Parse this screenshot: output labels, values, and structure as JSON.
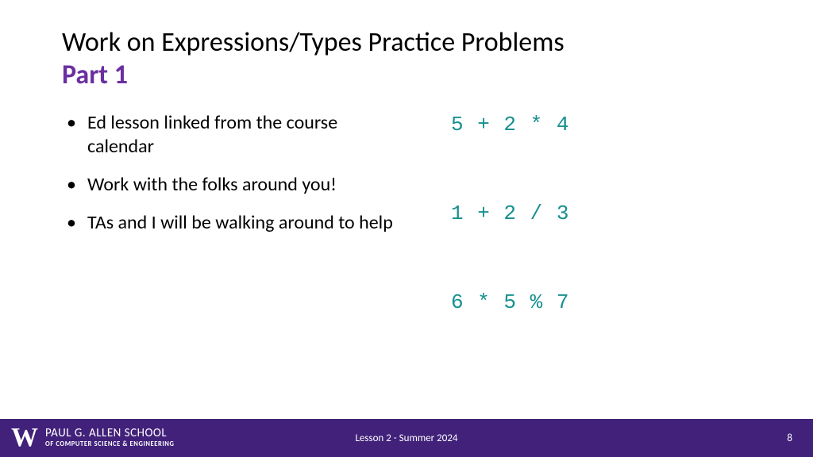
{
  "colors": {
    "accent_purple": "#6b2fa0",
    "footer_purple": "#41217a",
    "code_teal": "#178f8f",
    "text_black": "#000000",
    "background": "#ffffff",
    "footer_text": "#ffffff"
  },
  "title": {
    "main": "Work on Expressions/Types Practice Problems",
    "sub": "Part 1"
  },
  "bullets": [
    "Ed lesson linked from the course calendar",
    "Work with the folks around you!",
    "TAs and I will be walking around to help"
  ],
  "code_lines": [
    "5 + 2 * 4",
    "1 + 2 / 3",
    "6 * 5 % 7"
  ],
  "footer": {
    "logo_mark": "W",
    "school_main": "PAUL G. ALLEN SCHOOL",
    "school_sub": "OF COMPUTER SCIENCE & ENGINEERING",
    "center": "Lesson 2 - Summer 2024",
    "page": "8"
  }
}
